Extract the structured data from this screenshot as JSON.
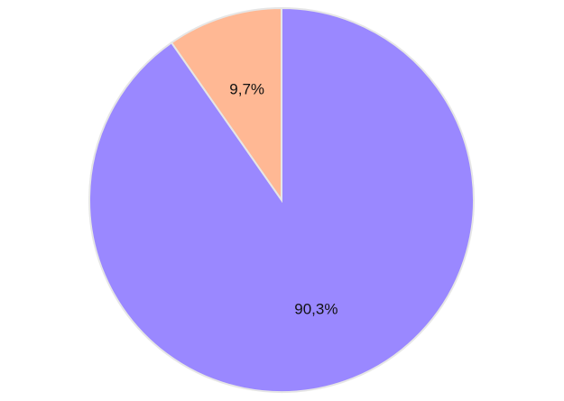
{
  "chart_data": {
    "type": "pie",
    "values": [
      90.3,
      9.7
    ],
    "value_labels": [
      "90,3%",
      "9,7%"
    ],
    "colors": [
      "#9a88ff",
      "#ffb894"
    ]
  }
}
